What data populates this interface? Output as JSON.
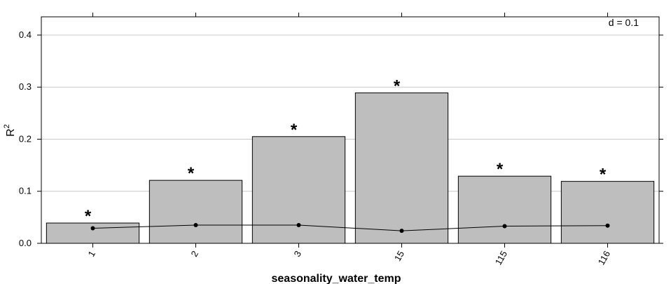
{
  "chart_data": {
    "type": "bar",
    "categories": [
      "1",
      "2",
      "3",
      "15",
      "115",
      "116"
    ],
    "values": [
      0.039,
      0.121,
      0.205,
      0.289,
      0.129,
      0.119
    ],
    "overlay_line": [
      0.029,
      0.035,
      0.035,
      0.024,
      0.033,
      0.034
    ],
    "significance": [
      "*",
      "*",
      "*",
      "*",
      "*",
      "*"
    ],
    "xlabel": "seasonality_water_temp",
    "ylabel": "R",
    "ylabel_superscript": "2",
    "ylim": [
      0,
      0.435
    ],
    "yticks": [
      "0.0",
      "0.1",
      "0.2",
      "0.3",
      "0.4"
    ],
    "annotation": "d = 0.1",
    "grid": true,
    "bar_color": "#bebebe",
    "line_color": "#000000"
  }
}
